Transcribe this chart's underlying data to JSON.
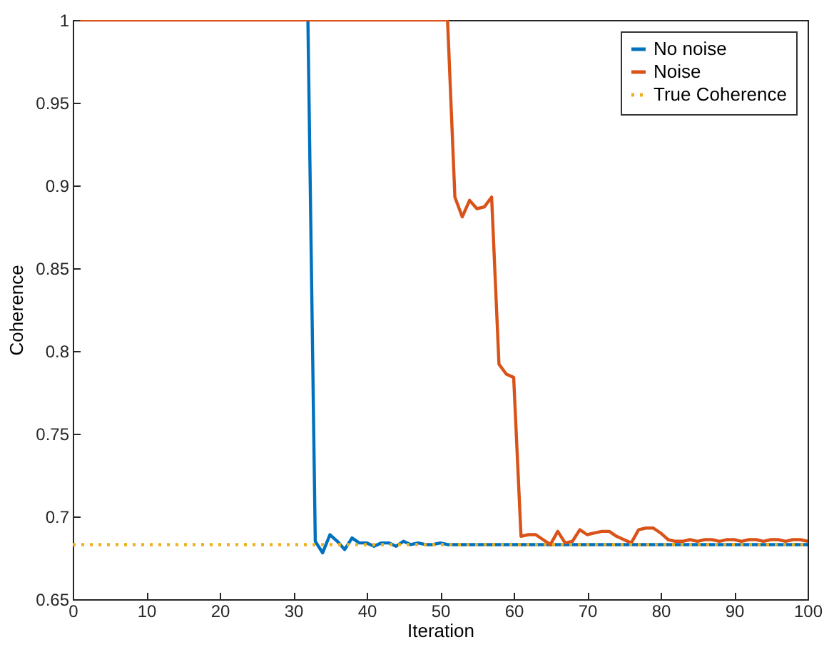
{
  "chart_data": {
    "type": "line",
    "xlabel": "Iteration",
    "ylabel": "Coherence",
    "x": [
      1,
      2,
      3,
      4,
      5,
      6,
      7,
      8,
      9,
      10,
      11,
      12,
      13,
      14,
      15,
      16,
      17,
      18,
      19,
      20,
      21,
      22,
      23,
      24,
      25,
      26,
      27,
      28,
      29,
      30,
      31,
      32,
      33,
      34,
      35,
      36,
      37,
      38,
      39,
      40,
      41,
      42,
      43,
      44,
      45,
      46,
      47,
      48,
      49,
      50,
      51,
      52,
      53,
      54,
      55,
      56,
      57,
      58,
      59,
      60,
      61,
      62,
      63,
      64,
      65,
      66,
      67,
      68,
      69,
      70,
      71,
      72,
      73,
      74,
      75,
      76,
      77,
      78,
      79,
      80,
      81,
      82,
      83,
      84,
      85,
      86,
      87,
      88,
      89,
      90,
      91,
      92,
      93,
      94,
      95,
      96,
      97,
      98,
      99,
      100
    ],
    "series": [
      {
        "name": "No noise",
        "color": "#0072bd",
        "values": [
          null,
          null,
          null,
          null,
          null,
          null,
          null,
          null,
          null,
          null,
          null,
          null,
          null,
          null,
          null,
          null,
          null,
          null,
          null,
          null,
          null,
          null,
          null,
          null,
          null,
          null,
          null,
          null,
          null,
          null,
          null,
          1,
          0.685,
          0.678,
          0.689,
          0.685,
          0.68,
          0.687,
          0.684,
          0.684,
          0.682,
          0.684,
          0.684,
          0.682,
          0.685,
          0.683,
          0.684,
          0.683,
          0.683,
          0.684,
          0.683,
          0.683,
          0.683,
          0.683,
          0.683,
          0.683,
          0.683,
          0.683,
          0.683,
          0.683,
          0.683,
          0.683,
          0.683,
          0.683,
          0.683,
          0.683,
          0.683,
          0.683,
          0.683,
          0.683,
          0.683,
          0.683,
          0.683,
          0.683,
          0.683,
          0.683,
          0.683,
          0.683,
          0.683,
          0.683,
          0.683,
          0.683,
          0.683,
          0.683,
          0.683,
          0.683,
          0.683,
          0.683,
          0.683,
          0.683,
          0.683,
          0.683,
          0.683,
          0.683,
          0.683,
          0.683,
          0.683,
          0.683,
          0.683,
          0.683
        ]
      },
      {
        "name": "Noise",
        "color": "#d95319",
        "values": [
          1,
          1,
          1,
          1,
          1,
          1,
          1,
          1,
          1,
          1,
          1,
          1,
          1,
          1,
          1,
          1,
          1,
          1,
          1,
          1,
          1,
          1,
          1,
          1,
          1,
          1,
          1,
          1,
          1,
          1,
          1,
          1,
          1,
          1,
          1,
          1,
          1,
          1,
          1,
          1,
          1,
          1,
          1,
          1,
          1,
          1,
          1,
          1,
          1,
          1,
          1,
          0.893,
          0.881,
          0.891,
          0.886,
          0.887,
          0.893,
          0.792,
          0.786,
          0.784,
          0.688,
          0.689,
          0.689,
          0.686,
          0.683,
          0.691,
          0.684,
          0.685,
          0.692,
          0.689,
          0.69,
          0.691,
          0.691,
          0.688,
          0.686,
          0.684,
          0.692,
          0.693,
          0.693,
          0.69,
          0.686,
          0.685,
          0.685,
          0.686,
          0.685,
          0.686,
          0.686,
          0.685,
          0.686,
          0.686,
          0.685,
          0.686,
          0.686,
          0.685,
          0.686,
          0.686,
          0.685,
          0.686,
          0.686,
          0.685
        ]
      },
      {
        "name": "True Coherence",
        "color": "#edb120",
        "line_style": "dotted",
        "x": [
          0,
          100
        ],
        "values": [
          0.683,
          0.683
        ]
      }
    ],
    "xlim": [
      0,
      100
    ],
    "ylim": [
      0.65,
      1
    ],
    "xticks": [
      0,
      10,
      20,
      30,
      40,
      50,
      60,
      70,
      80,
      90,
      100
    ],
    "yticks": [
      0.65,
      0.7,
      0.75,
      0.8,
      0.85,
      0.9,
      0.95,
      1
    ],
    "line_style": "solid",
    "legend": "top right"
  }
}
